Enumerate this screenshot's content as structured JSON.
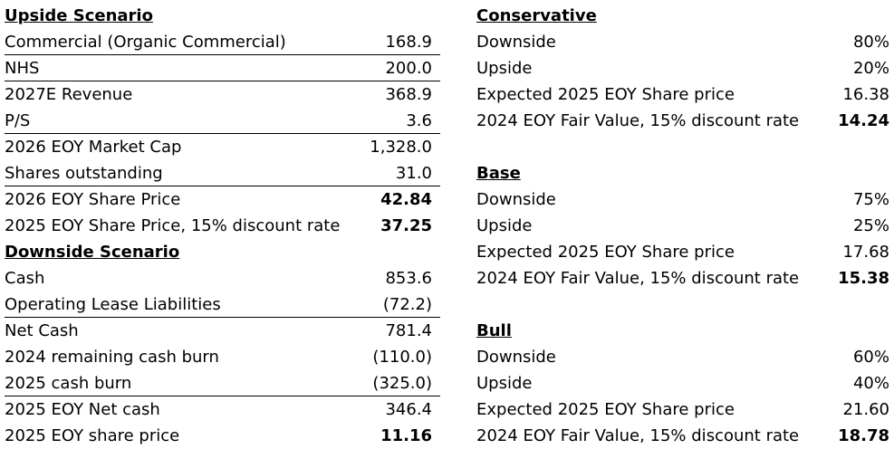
{
  "left": {
    "upside": {
      "header": "Upside Scenario",
      "rows": [
        {
          "label": "Commercial (Organic Commercial)",
          "value": "168.9"
        },
        {
          "label": "NHS",
          "value": "200.0"
        },
        {
          "label": "2027E Revenue",
          "value": "368.9"
        },
        {
          "label": "P/S",
          "value": "3.6"
        },
        {
          "label": "2026 EOY Market Cap",
          "value": "1,328.0"
        },
        {
          "label": "Shares outstanding",
          "value": "31.0"
        },
        {
          "label": "2026 EOY Share Price",
          "value": "42.84"
        },
        {
          "label": "2025 EOY Share Price, 15% discount rate",
          "value": "37.25"
        }
      ]
    },
    "downside": {
      "header": "Downside Scenario",
      "rows": [
        {
          "label": "Cash",
          "value": "853.6"
        },
        {
          "label": "Operating Lease Liabilities",
          "value": "(72.2)"
        },
        {
          "label": "Net Cash",
          "value": "781.4"
        },
        {
          "label": "2024 remaining cash burn",
          "value": "(110.0)"
        },
        {
          "label": "2025 cash burn",
          "value": "(325.0)"
        },
        {
          "label": "2025 EOY Net cash",
          "value": "346.4"
        },
        {
          "label": "2025 EOY share price",
          "value": "11.16"
        }
      ]
    }
  },
  "right": {
    "conservative": {
      "header": "Conservative",
      "rows": [
        {
          "label": "Downside",
          "value": "80%"
        },
        {
          "label": "Upside",
          "value": "20%"
        },
        {
          "label": "Expected 2025 EOY Share price",
          "value": "16.38"
        },
        {
          "label": "2024 EOY Fair Value, 15% discount rate",
          "value": "14.24"
        }
      ]
    },
    "base": {
      "header": "Base",
      "rows": [
        {
          "label": "Downside",
          "value": "75%"
        },
        {
          "label": "Upside",
          "value": "25%"
        },
        {
          "label": "Expected 2025 EOY Share price",
          "value": "17.68"
        },
        {
          "label": "2024 EOY Fair Value, 15% discount rate",
          "value": "15.38"
        }
      ]
    },
    "bull": {
      "header": "Bull",
      "rows": [
        {
          "label": "Downside",
          "value": "60%"
        },
        {
          "label": "Upside",
          "value": "40%"
        },
        {
          "label": "Expected 2025 EOY Share price",
          "value": "21.60"
        },
        {
          "label": "2024 EOY Fair Value, 15% discount rate",
          "value": "18.78"
        }
      ]
    }
  }
}
